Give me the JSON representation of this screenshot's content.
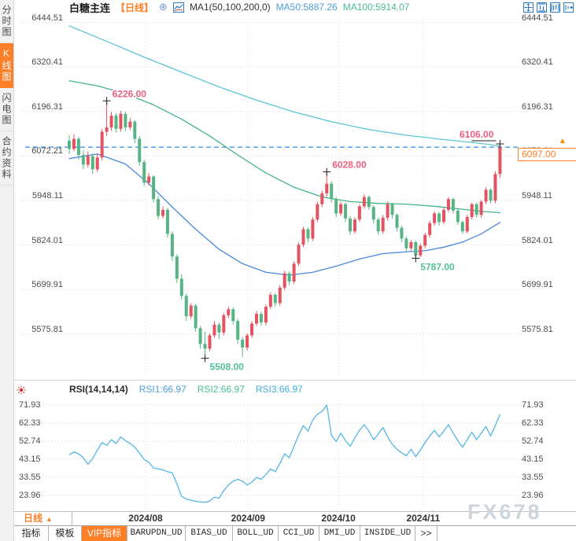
{
  "sidebar": {
    "items": [
      {
        "label": "分时图",
        "active": false
      },
      {
        "label": "K线图",
        "active": true
      },
      {
        "label": "闪电图",
        "active": false
      },
      {
        "label": "合约资料",
        "active": false
      }
    ]
  },
  "header": {
    "symbol": "白糖主连",
    "period_tag": "【日线】",
    "plus_glyph": "⊕",
    "ma_settings": "MA1(50,100,200,0)",
    "ma50": "MA50:5887.26",
    "ma100": "MA100:5914.07"
  },
  "toolbar": {
    "icons": [
      "pan-tool-icon",
      "fit-vertical-icon",
      "fit-horizontal-icon",
      "go-latest-icon"
    ]
  },
  "main_chart": {
    "current_price_label": "6097.00",
    "price_arrow_glyph": "▲"
  },
  "rsi_header": {
    "title": "RSI(14,14,14)",
    "rsi1": "RSI1:66.97",
    "rsi2": "RSI2:66.97",
    "rsi3": "RSI3:66.97"
  },
  "xaxis": {
    "period_label": "日线",
    "arrow_glyph": "▲",
    "months": [
      "2024/08",
      "2024/09",
      "2024/10",
      "2024/11"
    ]
  },
  "tabs": [
    {
      "label": "指标",
      "active": false
    },
    {
      "label": "模板",
      "active": false
    },
    {
      "label": "VIP指标",
      "active": true
    },
    {
      "label": "BARUPDN_UD",
      "active": false
    },
    {
      "label": "BIAS_UD",
      "active": false
    },
    {
      "label": "BOLL_UD",
      "active": false
    },
    {
      "label": "CCI_UD",
      "active": false
    },
    {
      "label": "DMI_UD",
      "active": false
    },
    {
      "label": "INSIDE_UD",
      "active": false
    },
    {
      "label": ">>",
      "active": false
    }
  ],
  "watermark": "FX678",
  "colors": {
    "accent_orange": "#ff7f27",
    "up_red": "#e35462",
    "down_green": "#56b583",
    "ma50_blue": "#4a89dc",
    "ma100_green": "#43b586",
    "ma200_cyan": "#5ec4d6",
    "rsi_line": "#55b7e3",
    "price_line_blue": "#2f8be8",
    "annotation_pink": "#ee5f7d",
    "annotation_green": "#53c096"
  },
  "chart_data": [
    {
      "type": "candlestick",
      "symbol": "白糖主连",
      "period": "日线",
      "ylim": [
        5470,
        6470
      ],
      "y_ticks": [
        "6444.51",
        "6320.41",
        "6196.31",
        "6072.21",
        "5948.11",
        "5824.01",
        "5699.91",
        "5575.81"
      ],
      "x_month_labels": [
        "2024/08",
        "2024/09",
        "2024/10",
        "2024/11"
      ],
      "month_day_positions": [
        16.3,
        38.2,
        57.5,
        75.6
      ],
      "current_price": 6097.0,
      "up_color": "#e35462",
      "down_color": "#56b583",
      "candles_ohlc": [
        [
          6115,
          6130,
          6078,
          6092
        ],
        [
          6092,
          6132,
          6085,
          6120
        ],
        [
          6120,
          6126,
          6062,
          6075
        ],
        [
          6075,
          6088,
          6035,
          6048
        ],
        [
          6048,
          6085,
          6040,
          6072
        ],
        [
          6072,
          6080,
          6022,
          6035
        ],
        [
          6035,
          6078,
          6028,
          6068
        ],
        [
          6068,
          6148,
          6060,
          6140
        ],
        [
          6140,
          6226,
          6128,
          6152
        ],
        [
          6152,
          6195,
          6142,
          6185
        ],
        [
          6185,
          6192,
          6138,
          6148
        ],
        [
          6148,
          6198,
          6140,
          6190
        ],
        [
          6190,
          6196,
          6142,
          6152
        ],
        [
          6152,
          6178,
          6145,
          6168
        ],
        [
          6168,
          6172,
          6108,
          6120
        ],
        [
          6120,
          6128,
          6045,
          6055
        ],
        [
          6055,
          6062,
          5988,
          5998
        ],
        [
          5998,
          6025,
          5990,
          6015
        ],
        [
          6015,
          6018,
          5942,
          5952
        ],
        [
          5952,
          5960,
          5895,
          5905
        ],
        [
          5905,
          5932,
          5898,
          5922
        ],
        [
          5922,
          5928,
          5845,
          5855
        ],
        [
          5855,
          5862,
          5780,
          5792
        ],
        [
          5792,
          5798,
          5718,
          5730
        ],
        [
          5730,
          5742,
          5672,
          5682
        ],
        [
          5682,
          5688,
          5612,
          5625
        ],
        [
          5625,
          5662,
          5618,
          5655
        ],
        [
          5655,
          5660,
          5582,
          5592
        ],
        [
          5592,
          5598,
          5535,
          5548
        ],
        [
          5548,
          5582,
          5508,
          5535
        ],
        [
          5535,
          5578,
          5528,
          5572
        ],
        [
          5572,
          5612,
          5565,
          5602
        ],
        [
          5602,
          5608,
          5562,
          5580
        ],
        [
          5580,
          5635,
          5572,
          5628
        ],
        [
          5628,
          5652,
          5620,
          5645
        ],
        [
          5645,
          5650,
          5602,
          5612
        ],
        [
          5612,
          5618,
          5548,
          5560
        ],
        [
          5560,
          5568,
          5512,
          5538
        ],
        [
          5538,
          5578,
          5530,
          5572
        ],
        [
          5572,
          5612,
          5565,
          5605
        ],
        [
          5605,
          5640,
          5598,
          5632
        ],
        [
          5632,
          5638,
          5598,
          5608
        ],
        [
          5608,
          5658,
          5600,
          5652
        ],
        [
          5652,
          5692,
          5645,
          5685
        ],
        [
          5685,
          5690,
          5652,
          5662
        ],
        [
          5662,
          5712,
          5655,
          5705
        ],
        [
          5705,
          5752,
          5698,
          5745
        ],
        [
          5745,
          5750,
          5712,
          5722
        ],
        [
          5722,
          5778,
          5715,
          5772
        ],
        [
          5772,
          5832,
          5765,
          5825
        ],
        [
          5825,
          5875,
          5818,
          5868
        ],
        [
          5868,
          5872,
          5832,
          5842
        ],
        [
          5842,
          5902,
          5835,
          5895
        ],
        [
          5895,
          5945,
          5888,
          5938
        ],
        [
          5938,
          5975,
          5930,
          5968
        ],
        [
          5968,
          6028,
          5958,
          5995
        ],
        [
          5995,
          6002,
          5942,
          5952
        ],
        [
          5952,
          5958,
          5902,
          5912
        ],
        [
          5912,
          5945,
          5905,
          5938
        ],
        [
          5938,
          5942,
          5888,
          5898
        ],
        [
          5898,
          5905,
          5852,
          5862
        ],
        [
          5862,
          5902,
          5855,
          5895
        ],
        [
          5895,
          5938,
          5888,
          5932
        ],
        [
          5932,
          5965,
          5925,
          5958
        ],
        [
          5958,
          5962,
          5922,
          5930
        ],
        [
          5930,
          5935,
          5885,
          5895
        ],
        [
          5895,
          5900,
          5852,
          5862
        ],
        [
          5862,
          5908,
          5855,
          5900
        ],
        [
          5900,
          5945,
          5892,
          5938
        ],
        [
          5938,
          5942,
          5898,
          5908
        ],
        [
          5908,
          5912,
          5862,
          5872
        ],
        [
          5872,
          5878,
          5832,
          5842
        ],
        [
          5842,
          5848,
          5805,
          5815
        ],
        [
          5815,
          5838,
          5808,
          5832
        ],
        [
          5832,
          5836,
          5787,
          5795
        ],
        [
          5795,
          5828,
          5790,
          5822
        ],
        [
          5822,
          5858,
          5815,
          5852
        ],
        [
          5852,
          5892,
          5845,
          5885
        ],
        [
          5885,
          5918,
          5878,
          5912
        ],
        [
          5912,
          5916,
          5878,
          5888
        ],
        [
          5888,
          5928,
          5882,
          5922
        ],
        [
          5922,
          5958,
          5915,
          5952
        ],
        [
          5952,
          5956,
          5912,
          5920
        ],
        [
          5920,
          5925,
          5880,
          5888
        ],
        [
          5888,
          5892,
          5855,
          5862
        ],
        [
          5862,
          5908,
          5856,
          5902
        ],
        [
          5902,
          5942,
          5895,
          5938
        ],
        [
          5938,
          5942,
          5900,
          5908
        ],
        [
          5908,
          5950,
          5900,
          5945
        ],
        [
          5945,
          5985,
          5938,
          5978
        ],
        [
          5978,
          5982,
          5940,
          5948
        ],
        [
          5948,
          6030,
          5940,
          6022
        ],
        [
          6022,
          6106,
          6012,
          6097
        ]
      ],
      "ma_lines": [
        {
          "name": "MA50",
          "color": "#4a89dc",
          "points": [
            [
              0,
              6065
            ],
            [
              6,
              6078
            ],
            [
              12,
              6050
            ],
            [
              17,
              5995
            ],
            [
              22,
              5930
            ],
            [
              27,
              5868
            ],
            [
              32,
              5812
            ],
            [
              37,
              5772
            ],
            [
              42,
              5748
            ],
            [
              47,
              5740
            ],
            [
              52,
              5748
            ],
            [
              57,
              5765
            ],
            [
              62,
              5785
            ],
            [
              67,
              5800
            ],
            [
              72,
              5805
            ],
            [
              76,
              5808
            ],
            [
              80,
              5818
            ],
            [
              84,
              5832
            ],
            [
              88,
              5855
            ],
            [
              92,
              5887
            ]
          ]
        },
        {
          "name": "MA100",
          "color": "#43b586",
          "points": [
            [
              0,
              6282
            ],
            [
              6,
              6268
            ],
            [
              12,
              6246
            ],
            [
              18,
              6215
            ],
            [
              24,
              6175
            ],
            [
              30,
              6128
            ],
            [
              36,
              6075
            ],
            [
              42,
              6025
            ],
            [
              48,
              5985
            ],
            [
              54,
              5958
            ],
            [
              60,
              5945
            ],
            [
              66,
              5940
            ],
            [
              72,
              5938
            ],
            [
              78,
              5932
            ],
            [
              83,
              5925
            ],
            [
              88,
              5918
            ],
            [
              92,
              5914
            ]
          ]
        },
        {
          "name": "MA200",
          "color": "#5ec4d6",
          "points": [
            [
              0,
              6435
            ],
            [
              8,
              6392
            ],
            [
              16,
              6348
            ],
            [
              24,
              6306
            ],
            [
              32,
              6265
            ],
            [
              40,
              6228
            ],
            [
              48,
              6195
            ],
            [
              56,
              6168
            ],
            [
              64,
              6146
            ],
            [
              72,
              6130
            ],
            [
              80,
              6118
            ],
            [
              86,
              6110
            ],
            [
              90,
              6104
            ],
            [
              92,
              6100
            ]
          ]
        }
      ],
      "annotations": [
        {
          "day": 8,
          "price": 6226.0,
          "label": "6226.00",
          "side": "high",
          "placement": "right"
        },
        {
          "day": 55,
          "price": 6028.0,
          "label": "6028.00",
          "side": "high",
          "placement": "right"
        },
        {
          "day": 92,
          "price": 6106.0,
          "label": "6106.00",
          "side": "high",
          "placement": "left",
          "connector": true
        },
        {
          "day": 29,
          "price": 5508.0,
          "label": "5508.00",
          "side": "low",
          "placement": "right"
        },
        {
          "day": 74,
          "price": 5787.0,
          "label": "5787.00",
          "side": "low",
          "placement": "right"
        }
      ]
    },
    {
      "type": "line",
      "name": "RSI(14,14,14)",
      "series_values": [
        {
          "name": "RSI1",
          "value": 66.97
        },
        {
          "name": "RSI2",
          "value": 66.97
        },
        {
          "name": "RSI3",
          "value": 66.97
        }
      ],
      "y_ticks": [
        "71.93",
        "62.33",
        "52.74",
        "43.15",
        "33.55",
        "23.96"
      ],
      "color": "#55b7e3",
      "values": [
        45.5,
        47,
        46,
        44,
        40.5,
        43.5,
        48,
        52,
        50.5,
        53.5,
        51.5,
        55,
        53,
        51.5,
        49.5,
        46.5,
        43,
        41.5,
        38.5,
        38,
        37.5,
        36.5,
        36,
        30,
        23.5,
        22,
        21.5,
        20.8,
        20.5,
        20.3,
        21,
        23,
        22.5,
        26.5,
        29.5,
        31.5,
        32.5,
        31.5,
        29.5,
        31,
        33.5,
        32.5,
        35,
        38,
        36.5,
        41,
        46,
        44,
        50,
        56,
        61,
        58,
        64,
        67,
        68.5,
        71.93,
        56,
        52.5,
        57,
        53,
        50,
        54.5,
        58.5,
        61.5,
        58,
        53.5,
        56.5,
        60,
        55,
        51,
        48.5,
        46.5,
        45,
        48.5,
        44.5,
        48,
        52,
        55.5,
        58.5,
        55,
        58,
        61.5,
        57,
        53,
        49.5,
        53.5,
        57.5,
        53.5,
        57,
        60.5,
        55.5,
        61,
        66.97
      ]
    }
  ]
}
